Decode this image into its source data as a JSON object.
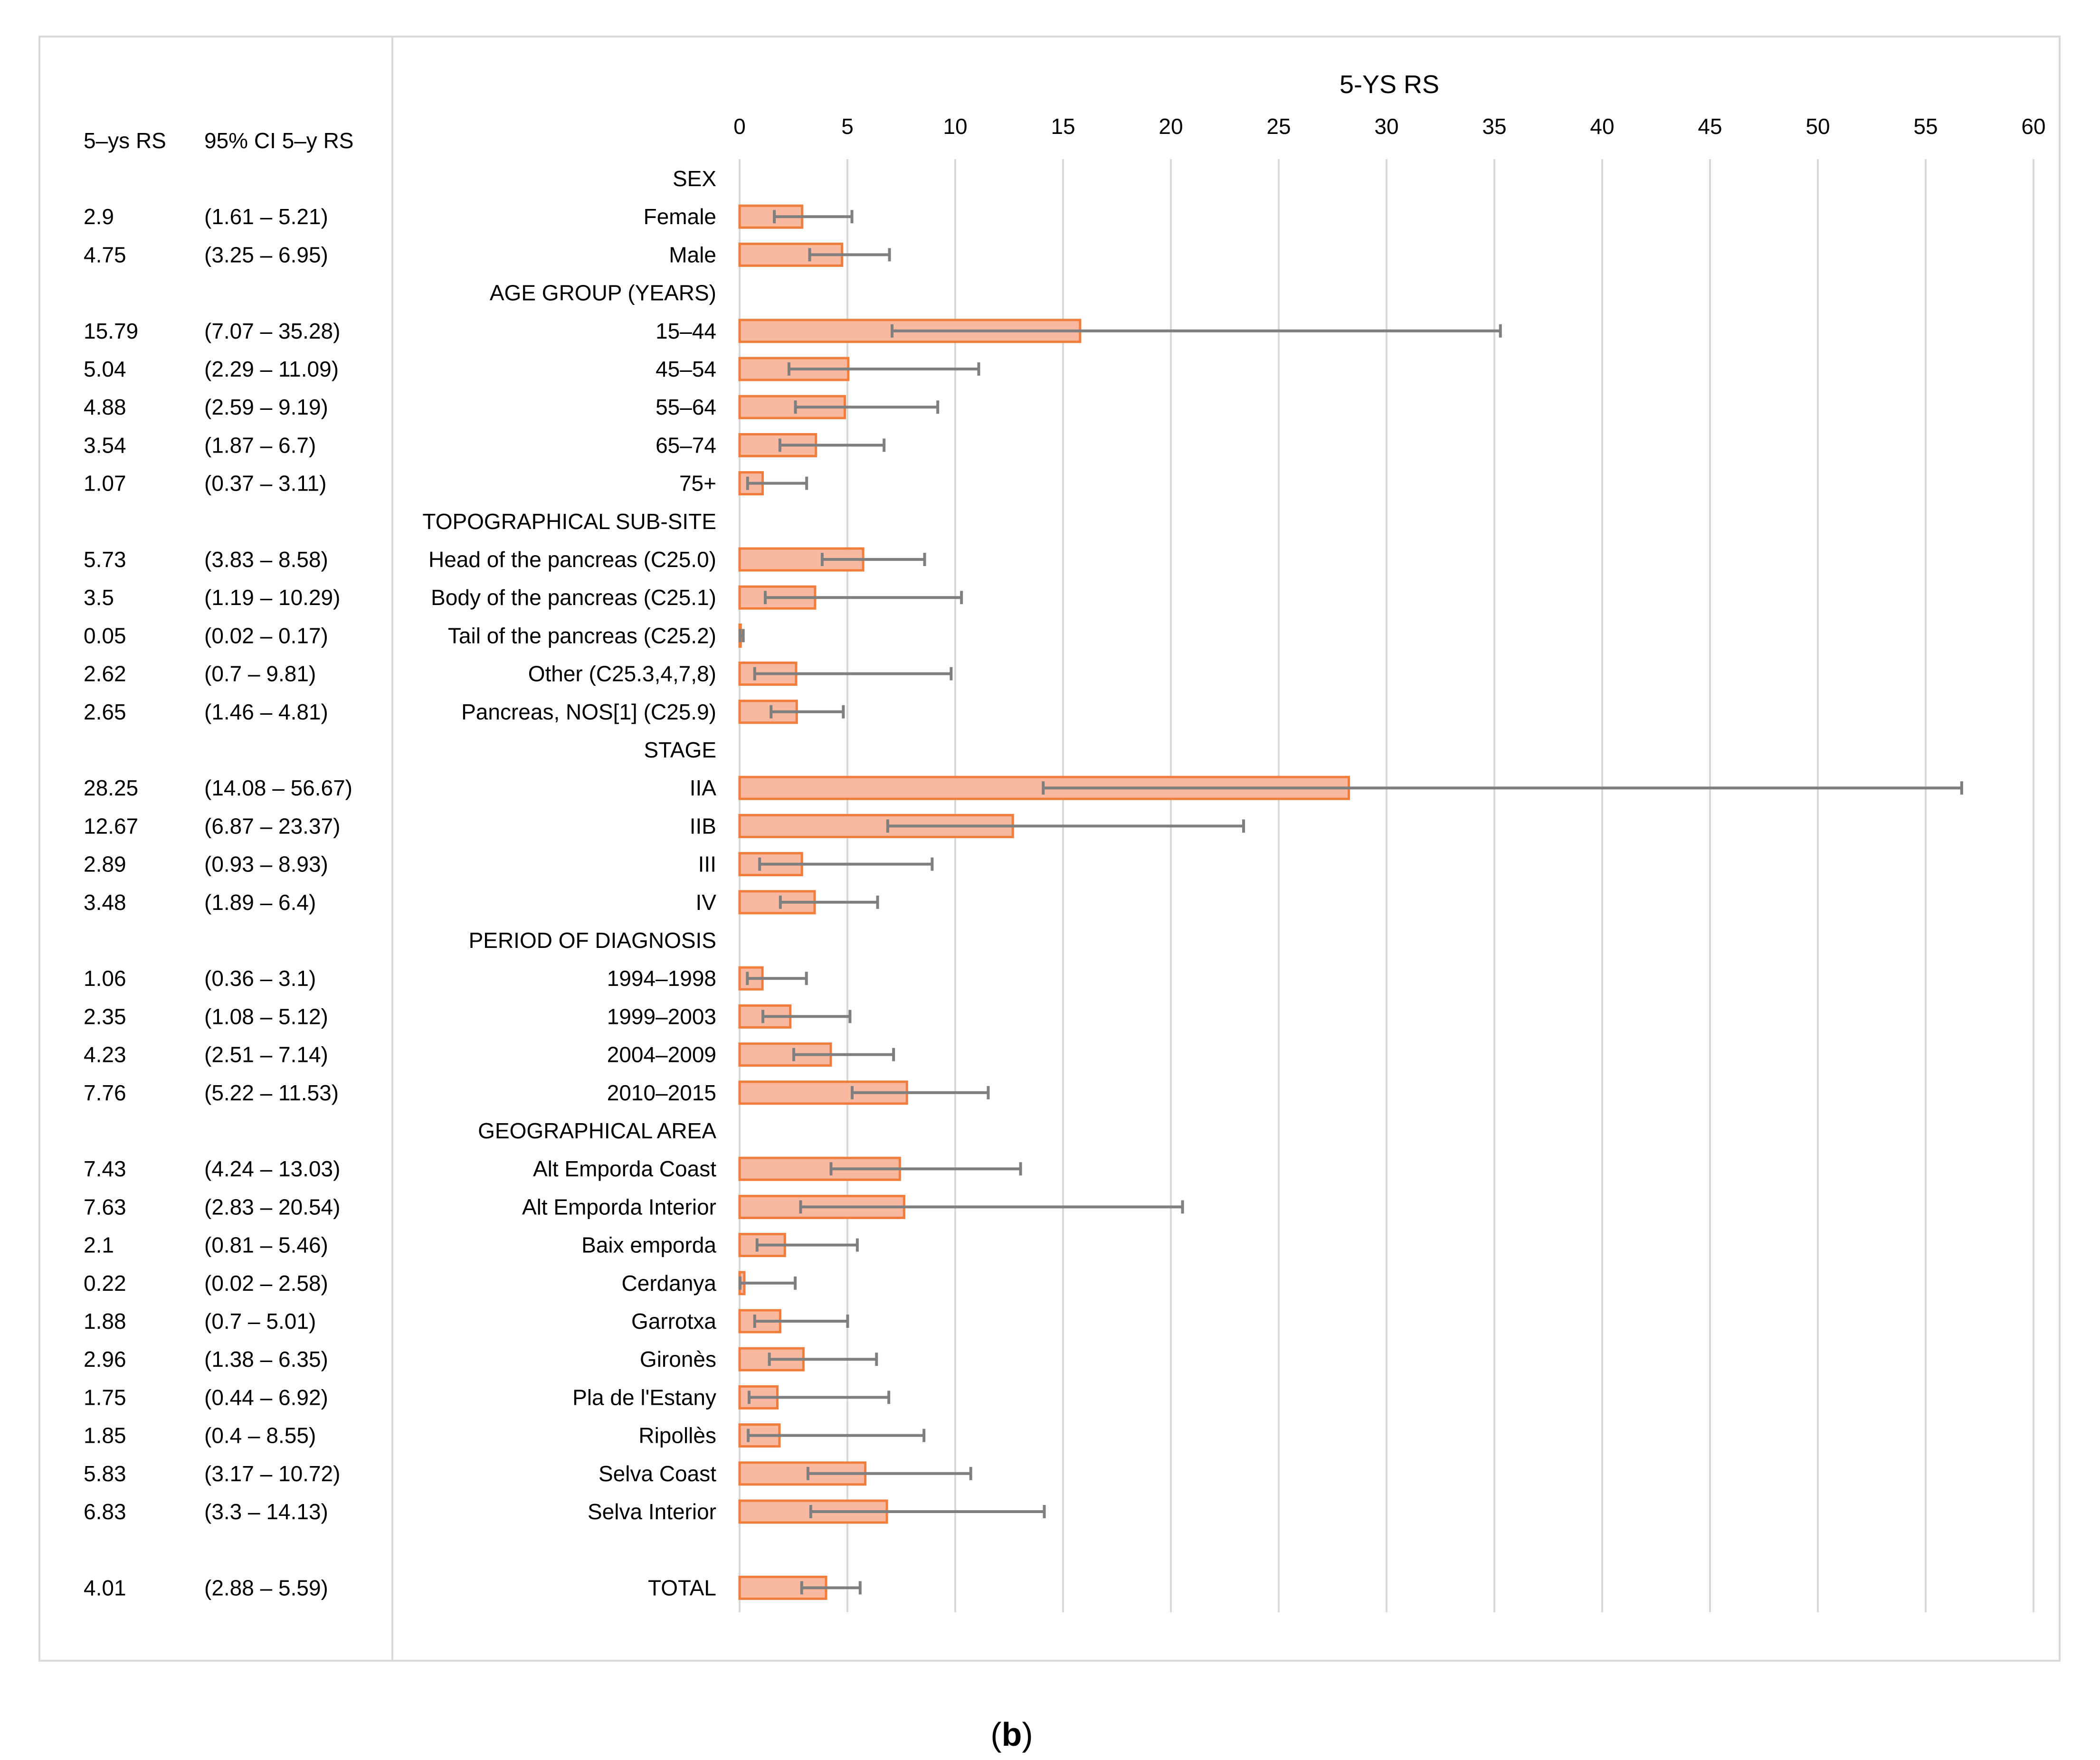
{
  "figure_label": {
    "open": "(",
    "letter": "b",
    "close": ")"
  },
  "columns": {
    "rs_header": "5–ys RS",
    "ci_header": "95% CI 5–y RS"
  },
  "chart_data": {
    "type": "bar",
    "orientation": "horizontal",
    "title": "5-YS RS",
    "xlim": [
      0,
      60
    ],
    "x_ticks": [
      0,
      5,
      10,
      15,
      20,
      25,
      30,
      35,
      40,
      45,
      50,
      55,
      60
    ],
    "grid": true,
    "bar_color": "#f9b9a0",
    "bar_edge_color": "#f07d3c",
    "error_bar_color": "#7f7f7f",
    "rows": [
      {
        "label": "SEX",
        "header": true
      },
      {
        "label": "Female",
        "value": 2.9,
        "lo": 1.61,
        "hi": 5.21,
        "rs": "2.9",
        "ci": "(1.61 – 5.21)"
      },
      {
        "label": "Male",
        "value": 4.75,
        "lo": 3.25,
        "hi": 6.95,
        "rs": "4.75",
        "ci": "(3.25 – 6.95)"
      },
      {
        "label": "AGE GROUP (YEARS)",
        "header": true
      },
      {
        "label": "15–44",
        "value": 15.79,
        "lo": 7.07,
        "hi": 35.28,
        "rs": "15.79",
        "ci": "(7.07 – 35.28)"
      },
      {
        "label": "45–54",
        "value": 5.04,
        "lo": 2.29,
        "hi": 11.09,
        "rs": "5.04",
        "ci": "(2.29 – 11.09)"
      },
      {
        "label": "55–64",
        "value": 4.88,
        "lo": 2.59,
        "hi": 9.19,
        "rs": "4.88",
        "ci": "(2.59 – 9.19)"
      },
      {
        "label": "65–74",
        "value": 3.54,
        "lo": 1.87,
        "hi": 6.7,
        "rs": "3.54",
        "ci": "(1.87 – 6.7)"
      },
      {
        "label": "75+",
        "value": 1.07,
        "lo": 0.37,
        "hi": 3.11,
        "rs": "1.07",
        "ci": "(0.37 – 3.11)"
      },
      {
        "label": "TOPOGRAPHICAL SUB-SITE",
        "header": true
      },
      {
        "label": "Head of the pancreas (C25.0)",
        "value": 5.73,
        "lo": 3.83,
        "hi": 8.58,
        "rs": "5.73",
        "ci": "(3.83 – 8.58)"
      },
      {
        "label": "Body of the pancreas  (C25.1)",
        "value": 3.5,
        "lo": 1.19,
        "hi": 10.29,
        "rs": "3.5",
        "ci": "(1.19 – 10.29)"
      },
      {
        "label": "Tail of the pancreas (C25.2)",
        "value": 0.05,
        "lo": 0.02,
        "hi": 0.17,
        "rs": "0.05",
        "ci": "(0.02 – 0.17)"
      },
      {
        "label": "Other (C25.3,4,7,8)",
        "value": 2.62,
        "lo": 0.7,
        "hi": 9.81,
        "rs": "2.62",
        "ci": "(0.7 – 9.81)"
      },
      {
        "label": "Pancreas, NOS[1] (C25.9)",
        "value": 2.65,
        "lo": 1.46,
        "hi": 4.81,
        "rs": "2.65",
        "ci": "(1.46 – 4.81)"
      },
      {
        "label": "STAGE",
        "header": true
      },
      {
        "label": "IIA",
        "value": 28.25,
        "lo": 14.08,
        "hi": 56.67,
        "rs": "28.25",
        "ci": "(14.08 – 56.67)"
      },
      {
        "label": "IIB",
        "value": 12.67,
        "lo": 6.87,
        "hi": 23.37,
        "rs": "12.67",
        "ci": "(6.87 – 23.37)"
      },
      {
        "label": "III",
        "value": 2.89,
        "lo": 0.93,
        "hi": 8.93,
        "rs": "2.89",
        "ci": "(0.93 – 8.93)"
      },
      {
        "label": "IV",
        "value": 3.48,
        "lo": 1.89,
        "hi": 6.4,
        "rs": "3.48",
        "ci": "(1.89 – 6.4)"
      },
      {
        "label": "PERIOD OF DIAGNOSIS",
        "header": true
      },
      {
        "label": "1994–1998",
        "value": 1.06,
        "lo": 0.36,
        "hi": 3.1,
        "rs": "1.06",
        "ci": "(0.36 – 3.1)"
      },
      {
        "label": "1999–2003",
        "value": 2.35,
        "lo": 1.08,
        "hi": 5.12,
        "rs": "2.35",
        "ci": "(1.08 – 5.12)"
      },
      {
        "label": "2004–2009",
        "value": 4.23,
        "lo": 2.51,
        "hi": 7.14,
        "rs": "4.23",
        "ci": "(2.51 – 7.14)"
      },
      {
        "label": "2010–2015",
        "value": 7.76,
        "lo": 5.22,
        "hi": 11.53,
        "rs": "7.76",
        "ci": "(5.22 – 11.53)"
      },
      {
        "label": "GEOGRAPHICAL AREA",
        "header": true
      },
      {
        "label": "Alt Emporda Coast",
        "value": 7.43,
        "lo": 4.24,
        "hi": 13.03,
        "rs": "7.43",
        "ci": "(4.24 – 13.03)"
      },
      {
        "label": "Alt Emporda Interior",
        "value": 7.63,
        "lo": 2.83,
        "hi": 20.54,
        "rs": "7.63",
        "ci": "(2.83 – 20.54)"
      },
      {
        "label": "Baix emporda",
        "value": 2.1,
        "lo": 0.81,
        "hi": 5.46,
        "rs": "2.1",
        "ci": "(0.81 – 5.46)"
      },
      {
        "label": "Cerdanya",
        "value": 0.22,
        "lo": 0.02,
        "hi": 2.58,
        "rs": "0.22",
        "ci": "(0.02 – 2.58)"
      },
      {
        "label": "Garrotxa",
        "value": 1.88,
        "lo": 0.7,
        "hi": 5.01,
        "rs": "1.88",
        "ci": "(0.7 – 5.01)"
      },
      {
        "label": "Gironès",
        "value": 2.96,
        "lo": 1.38,
        "hi": 6.35,
        "rs": "2.96",
        "ci": "(1.38 – 6.35)"
      },
      {
        "label": "Pla de l'Estany",
        "value": 1.75,
        "lo": 0.44,
        "hi": 6.92,
        "rs": "1.75",
        "ci": "(0.44 – 6.92)"
      },
      {
        "label": "Ripollès",
        "value": 1.85,
        "lo": 0.4,
        "hi": 8.55,
        "rs": "1.85",
        "ci": "(0.4 – 8.55)"
      },
      {
        "label": "Selva Coast",
        "value": 5.83,
        "lo": 3.17,
        "hi": 10.72,
        "rs": "5.83",
        "ci": "(3.17 – 10.72)"
      },
      {
        "label": "Selva Interior",
        "value": 6.83,
        "lo": 3.3,
        "hi": 14.13,
        "rs": "6.83",
        "ci": "(3.3 – 14.13)"
      },
      {
        "spacer": true
      },
      {
        "label": "TOTAL",
        "value": 4.01,
        "lo": 2.88,
        "hi": 5.59,
        "rs": "4.01",
        "ci": "(2.88 – 5.59)"
      }
    ]
  }
}
